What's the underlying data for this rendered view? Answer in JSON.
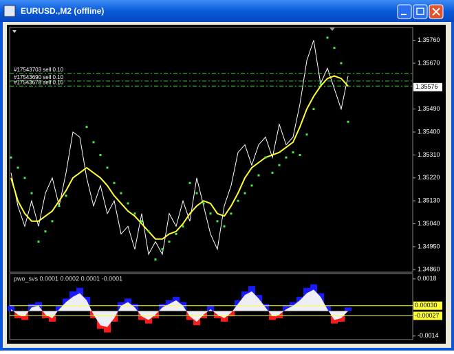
{
  "window_title": "EURUSD.,M2 (offline)",
  "chart_data": [
    {
      "type": "line",
      "ylim": [
        1.3485,
        1.3581
      ],
      "yticks": [
        {
          "value": 1.3576,
          "label": "1.35760"
        },
        {
          "value": 1.3567,
          "label": "1.35670"
        },
        {
          "value": 1.3549,
          "label": "1.35490"
        },
        {
          "value": 1.354,
          "label": "1.35400"
        },
        {
          "value": 1.3531,
          "label": "1.35310"
        },
        {
          "value": 1.3522,
          "label": "1.35220"
        },
        {
          "value": 1.3513,
          "label": "1.35130"
        },
        {
          "value": 1.3504,
          "label": "1.35040"
        },
        {
          "value": 1.3495,
          "label": "1.34950"
        },
        {
          "value": 1.3486,
          "label": "1.34860"
        }
      ],
      "last_price": 1.35576,
      "orders": [
        {
          "label": "#17543703 sell 0.10",
          "value": 1.3563
        },
        {
          "label": "#17543690 sell 0.10",
          "value": 1.356
        },
        {
          "label": "#17543678 sell 0.10",
          "value": 1.3558
        }
      ],
      "order_color": "#33cc33",
      "series": [
        {
          "color": "#ffffff",
          "style": "line",
          "values": [
            1.3524,
            1.3511,
            1.3503,
            1.3513,
            1.3503,
            1.3516,
            1.3522,
            1.3511,
            1.3524,
            1.354,
            1.3538,
            1.3522,
            1.3511,
            1.3519,
            1.3508,
            1.3513,
            1.35,
            1.3503,
            1.3494,
            1.3508,
            1.3492,
            1.3497,
            1.3492,
            1.3508,
            1.3503,
            1.3513,
            1.3505,
            1.3522,
            1.3511,
            1.35,
            1.3494,
            1.3511,
            1.3519,
            1.3532,
            1.3535,
            1.3527,
            1.3535,
            1.3538,
            1.353,
            1.3543,
            1.3535,
            1.3538,
            1.3551,
            1.3568,
            1.3576,
            1.3559,
            1.3565,
            1.3557,
            1.3549,
            1.3562
          ]
        },
        {
          "color": "#ffff33",
          "style": "line",
          "values": [
            1.3522,
            1.3513,
            1.3508,
            1.3505,
            1.3505,
            1.3507,
            1.3509,
            1.3513,
            1.3517,
            1.3522,
            1.3524,
            1.3526,
            1.3524,
            1.3522,
            1.3519,
            1.3515,
            1.3512,
            1.3509,
            1.3507,
            1.3504,
            1.3501,
            1.3498,
            1.3498,
            1.35,
            1.3501,
            1.3504,
            1.3508,
            1.3511,
            1.3513,
            1.3512,
            1.3508,
            1.3507,
            1.3511,
            1.3516,
            1.3522,
            1.3526,
            1.3528,
            1.353,
            1.3531,
            1.3532,
            1.3534,
            1.3536,
            1.3542,
            1.3549,
            1.3554,
            1.3558,
            1.3561,
            1.3562,
            1.3561,
            1.3558
          ]
        },
        {
          "color": "#44ee44",
          "style": "dots",
          "values": [
            1.353,
            1.3526,
            1.3522,
            1.3516,
            1.3497,
            1.3501,
            1.3505,
            1.3511,
            1.3515,
            null,
            null,
            1.3542,
            1.3536,
            1.3531,
            1.3526,
            1.352,
            1.3516,
            1.3512,
            1.3508,
            1.3505,
            1.3501,
            1.349,
            1.3494,
            1.3497,
            1.35,
            1.3503,
            1.352,
            1.3516,
            1.3512,
            1.3508,
            1.3505,
            1.3503,
            1.3508,
            1.3513,
            1.3516,
            1.3519,
            1.3523,
            1.353,
            1.3524,
            1.3527,
            1.353,
            1.3532,
            1.3531,
            1.3539,
            1.3549,
            1.3559,
            1.3577,
            1.3573,
            1.3567,
            1.3544
          ]
        }
      ]
    },
    {
      "type": "area",
      "title": "pwo_svs 0.0001 0.0002 0.0001 -0.0001",
      "ylim": [
        -0.0016,
        0.0021
      ],
      "yticks": [
        0.0018,
        -0.0014
      ],
      "levels": [
        {
          "value": 0.0003,
          "label": "0.00030"
        },
        {
          "value": -0.00027,
          "label": "-0.00027"
        }
      ],
      "level_color": "#ffff33",
      "bars": {
        "up_color": "#1a1aff",
        "down_color": "#ff1a1a",
        "values": [
          0.0003,
          -0.0004,
          -0.0005,
          0.0004,
          0.0005,
          -0.0004,
          -0.0006,
          0.0003,
          0.0007,
          0.0011,
          0.0013,
          0.0008,
          -0.0004,
          -0.001,
          -0.0012,
          -0.0006,
          0.0005,
          0.0007,
          0.0004,
          -0.0005,
          -0.0007,
          -0.0004,
          0.0004,
          0.0006,
          0.0008,
          0.0005,
          -0.0005,
          -0.0008,
          -0.0004,
          0.0003,
          -0.0004,
          -0.0006,
          -0.0003,
          0.0006,
          0.0011,
          0.0014,
          0.0009,
          0.0004,
          -0.0005,
          -0.0004,
          0.0003,
          0.0005,
          0.0008,
          0.0013,
          0.0015,
          0.001,
          0.0003,
          -0.0007,
          -0.0006,
          0.0002
        ]
      },
      "series": [
        {
          "color": "#eeeef6",
          "values": [
            0.0001,
            -0.0002,
            -0.0003,
            0.0002,
            0.0003,
            -0.0002,
            -0.0004,
            0.0001,
            0.0005,
            0.0008,
            0.001,
            0.0006,
            -0.0002,
            -0.0008,
            -0.0009,
            -0.0004,
            0.0003,
            0.0005,
            0.0002,
            -0.0003,
            -0.0005,
            -0.0002,
            0.0002,
            0.0004,
            0.0006,
            0.0003,
            -0.0003,
            -0.0006,
            -0.0002,
            0.0001,
            -0.0002,
            -0.0004,
            -0.0001,
            0.0004,
            0.0009,
            0.0011,
            0.0007,
            0.0002,
            -0.0003,
            -0.0002,
            0.0001,
            0.0003,
            0.0006,
            0.001,
            0.0012,
            0.0008,
            0.0001,
            -0.0005,
            -0.0004,
            0
          ]
        }
      ]
    }
  ]
}
